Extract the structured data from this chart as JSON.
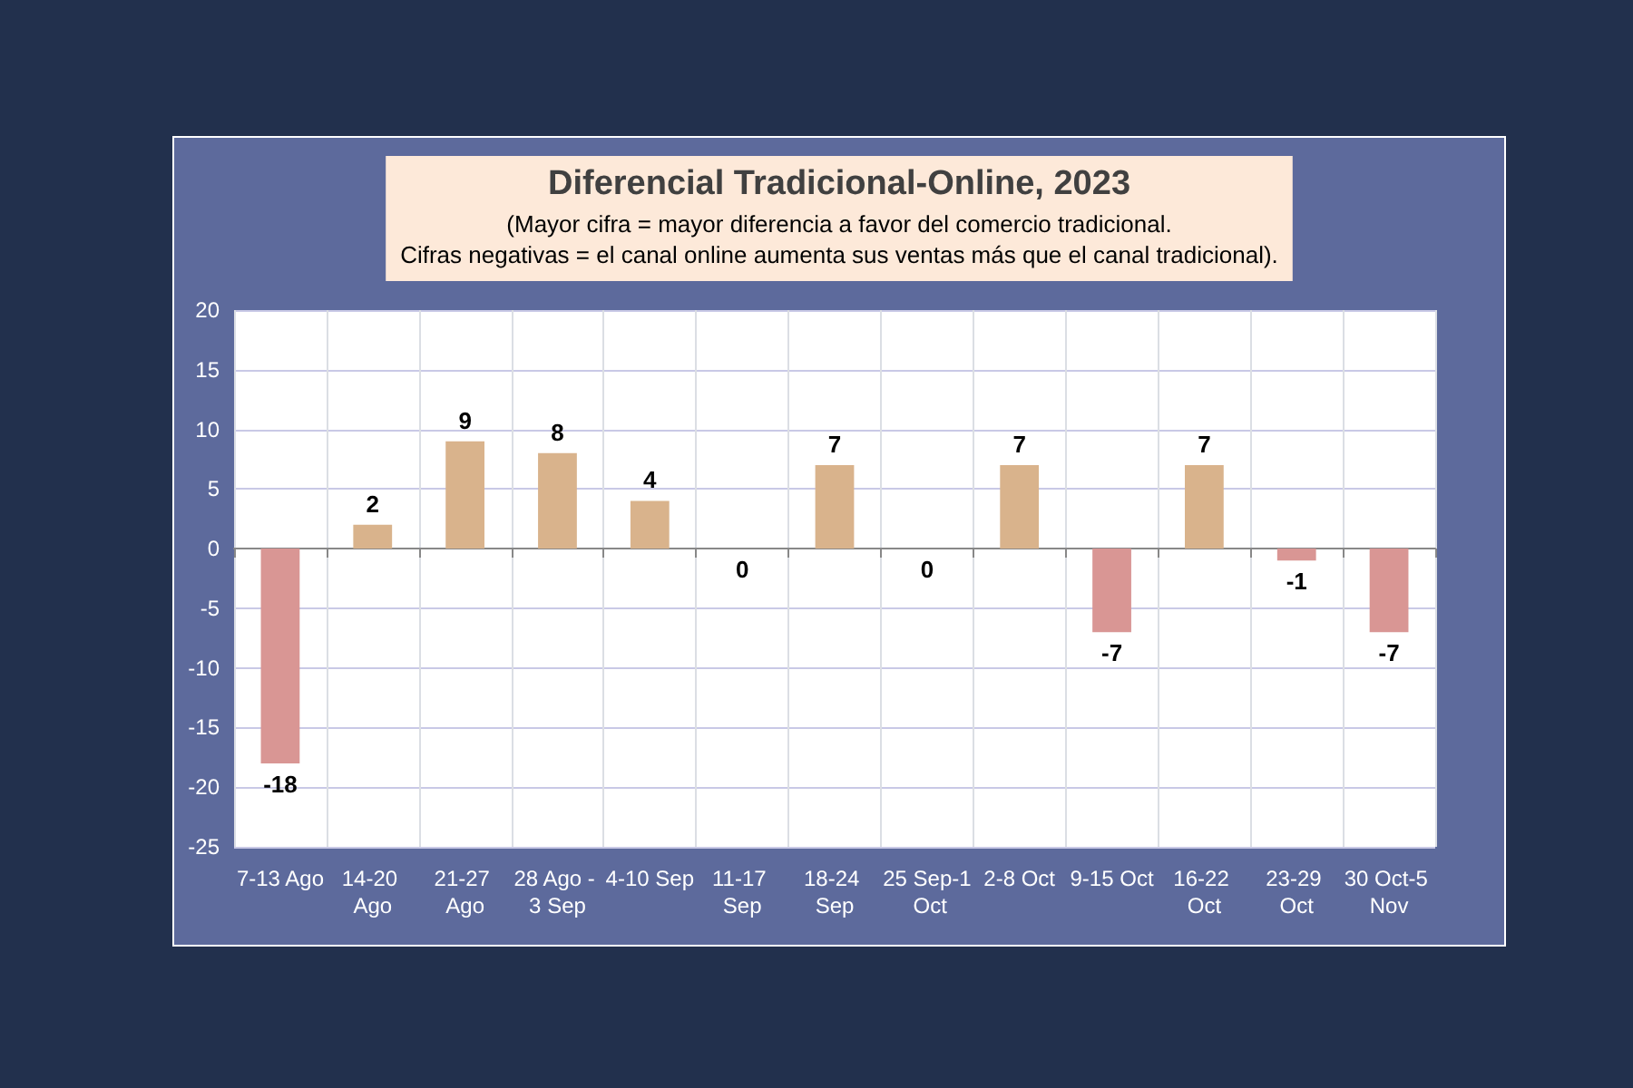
{
  "chart_data": {
    "type": "bar",
    "title": "Diferencial Tradicional-Online, 2023",
    "subtitle": "(Mayor cifra = mayor diferencia a favor del comercio tradicional.\nCifras negativas = el canal online aumenta sus ventas más que el canal tradicional).",
    "categories": [
      "7-13 Ago",
      "14-20 Ago",
      "21-27 Ago",
      "28 Ago - 3 Sep",
      "4-10 Sep",
      "11-17 Sep",
      "18-24 Sep",
      "25 Sep-1 Oct",
      "2-8 Oct",
      "9-15 Oct",
      "16-22 Oct",
      "23-29 Oct",
      "30 Oct-5 Nov"
    ],
    "values": [
      -18,
      2,
      9,
      8,
      4,
      0,
      7,
      0,
      7,
      -7,
      7,
      -1,
      -7
    ],
    "colors": [
      "#d99694",
      "#d9b38c",
      "#d9b38c",
      "#d9b38c",
      "#d9b38c",
      "#d9b38c",
      "#d9b38c",
      "#d9b38c",
      "#d9b38c",
      "#d99694",
      "#d9b38c",
      "#d99694",
      "#d99694"
    ],
    "ylim": [
      -25,
      20
    ],
    "yticks": [
      -25,
      -20,
      -15,
      -10,
      -5,
      0,
      5,
      10,
      15,
      20
    ],
    "grid": true,
    "data_labels": true
  }
}
